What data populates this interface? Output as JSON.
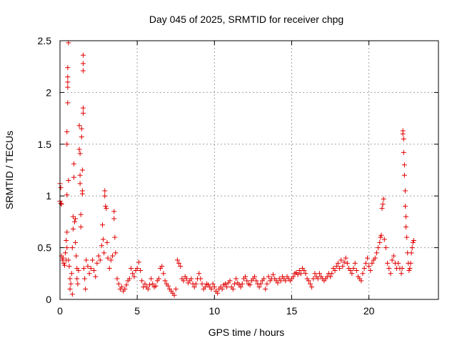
{
  "chart_data": {
    "type": "scatter",
    "title": "Day 045 of 2025, SRMTID for receiver chpg",
    "xlabel": "GPS time / hours",
    "ylabel": "SRMTID / TECUs",
    "xlim": [
      0,
      24.5
    ],
    "ylim": [
      0,
      2.5
    ],
    "xticks": [
      0,
      5,
      10,
      15,
      20
    ],
    "xtick_labels": [
      "0",
      "5",
      "10",
      "15",
      "20"
    ],
    "yticks": [
      0,
      0.5,
      1,
      1.5,
      2,
      2.5
    ],
    "ytick_labels": [
      "0",
      "0.5",
      "1",
      "1.5",
      "2",
      "2.5"
    ],
    "grid": true,
    "marker": "+",
    "color": "#e00000",
    "series": [
      {
        "name": "chpg",
        "points": [
          [
            0.0,
            1.12
          ],
          [
            0.0,
            0.95
          ],
          [
            0.05,
            1.08
          ],
          [
            0.05,
            0.93
          ],
          [
            0.1,
            0.92
          ],
          [
            0.1,
            0.42
          ],
          [
            0.15,
            0.38
          ],
          [
            0.2,
            0.4
          ],
          [
            0.25,
            0.35
          ],
          [
            0.3,
            0.33
          ],
          [
            0.35,
            0.45
          ],
          [
            0.4,
            0.38
          ],
          [
            0.4,
            0.57
          ],
          [
            0.45,
            0.5
          ],
          [
            0.45,
            0.65
          ],
          [
            0.45,
            1.01
          ],
          [
            0.45,
            1.5
          ],
          [
            0.45,
            1.62
          ],
          [
            0.5,
            1.9
          ],
          [
            0.5,
            2.05
          ],
          [
            0.5,
            2.1
          ],
          [
            0.5,
            2.15
          ],
          [
            0.5,
            2.24
          ],
          [
            0.55,
            2.48
          ],
          [
            0.55,
            1.15
          ],
          [
            0.55,
            0.38
          ],
          [
            0.6,
            0.32
          ],
          [
            0.65,
            0.2
          ],
          [
            0.65,
            0.1
          ],
          [
            0.7,
            0.15
          ],
          [
            0.75,
            0.25
          ],
          [
            0.8,
            0.05
          ],
          [
            0.8,
            0.5
          ],
          [
            0.85,
            0.68
          ],
          [
            0.85,
            0.8
          ],
          [
            0.9,
            1.18
          ],
          [
            0.9,
            1.31
          ],
          [
            0.95,
            0.75
          ],
          [
            1.0,
            0.78
          ],
          [
            1.0,
            0.55
          ],
          [
            1.05,
            0.42
          ],
          [
            1.1,
            0.3
          ],
          [
            1.1,
            0.2
          ],
          [
            1.15,
            0.15
          ],
          [
            1.2,
            0.28
          ],
          [
            1.25,
            1.68
          ],
          [
            1.25,
            1.45
          ],
          [
            1.3,
            1.41
          ],
          [
            1.3,
            1.2
          ],
          [
            1.3,
            1.12
          ],
          [
            1.35,
            0.82
          ],
          [
            1.35,
            0.7
          ],
          [
            1.4,
            1.65
          ],
          [
            1.4,
            1.57
          ],
          [
            1.45,
            1.25
          ],
          [
            1.45,
            1.05
          ],
          [
            1.45,
            1.02
          ],
          [
            1.5,
            2.36
          ],
          [
            1.5,
            2.28
          ],
          [
            1.5,
            2.21
          ],
          [
            1.5,
            1.85
          ],
          [
            1.5,
            1.8
          ],
          [
            1.55,
            0.3
          ],
          [
            1.6,
            0.2
          ],
          [
            1.65,
            0.1
          ],
          [
            1.7,
            0.38
          ],
          [
            1.8,
            0.32
          ],
          [
            1.9,
            0.25
          ],
          [
            2.0,
            0.3
          ],
          [
            2.1,
            0.38
          ],
          [
            2.2,
            0.28
          ],
          [
            2.3,
            0.22
          ],
          [
            2.4,
            0.35
          ],
          [
            2.5,
            0.42
          ],
          [
            2.6,
            0.38
          ],
          [
            2.7,
            0.52
          ],
          [
            2.75,
            0.72
          ],
          [
            2.8,
            0.58
          ],
          [
            2.85,
            0.45
          ],
          [
            2.9,
            1.05
          ],
          [
            2.9,
            1.0
          ],
          [
            2.95,
            0.9
          ],
          [
            3.0,
            0.88
          ],
          [
            3.05,
            0.55
          ],
          [
            3.1,
            0.4
          ],
          [
            3.2,
            0.3
          ],
          [
            3.3,
            0.38
          ],
          [
            3.4,
            0.42
          ],
          [
            3.5,
            0.85
          ],
          [
            3.5,
            0.78
          ],
          [
            3.55,
            0.6
          ],
          [
            3.6,
            0.45
          ],
          [
            3.7,
            0.2
          ],
          [
            3.8,
            0.15
          ],
          [
            3.9,
            0.1
          ],
          [
            4.0,
            0.12
          ],
          [
            4.1,
            0.08
          ],
          [
            4.2,
            0.1
          ],
          [
            4.3,
            0.14
          ],
          [
            4.4,
            0.18
          ],
          [
            4.5,
            0.2
          ],
          [
            4.6,
            0.3
          ],
          [
            4.7,
            0.25
          ],
          [
            4.8,
            0.22
          ],
          [
            4.9,
            0.28
          ],
          [
            5.0,
            0.3
          ],
          [
            5.1,
            0.36
          ],
          [
            5.2,
            0.28
          ],
          [
            5.3,
            0.18
          ],
          [
            5.4,
            0.12
          ],
          [
            5.5,
            0.15
          ],
          [
            5.6,
            0.12
          ],
          [
            5.7,
            0.1
          ],
          [
            5.8,
            0.14
          ],
          [
            5.9,
            0.2
          ],
          [
            6.0,
            0.15
          ],
          [
            6.1,
            0.12
          ],
          [
            6.2,
            0.13
          ],
          [
            6.3,
            0.18
          ],
          [
            6.4,
            0.2
          ],
          [
            6.5,
            0.3
          ],
          [
            6.6,
            0.32
          ],
          [
            6.7,
            0.25
          ],
          [
            6.8,
            0.18
          ],
          [
            6.9,
            0.15
          ],
          [
            7.0,
            0.13
          ],
          [
            7.1,
            0.1
          ],
          [
            7.2,
            0.08
          ],
          [
            7.3,
            0.06
          ],
          [
            7.4,
            0.04
          ],
          [
            7.5,
            0.1
          ],
          [
            7.6,
            0.38
          ],
          [
            7.7,
            0.35
          ],
          [
            7.8,
            0.32
          ],
          [
            7.9,
            0.2
          ],
          [
            8.0,
            0.18
          ],
          [
            8.1,
            0.22
          ],
          [
            8.2,
            0.2
          ],
          [
            8.3,
            0.16
          ],
          [
            8.4,
            0.18
          ],
          [
            8.5,
            0.2
          ],
          [
            8.6,
            0.15
          ],
          [
            8.7,
            0.12
          ],
          [
            8.8,
            0.15
          ],
          [
            8.9,
            0.2
          ],
          [
            9.0,
            0.25
          ],
          [
            9.1,
            0.2
          ],
          [
            9.2,
            0.15
          ],
          [
            9.3,
            0.1
          ],
          [
            9.4,
            0.12
          ],
          [
            9.5,
            0.15
          ],
          [
            9.6,
            0.14
          ],
          [
            9.7,
            0.12
          ],
          [
            9.8,
            0.1
          ],
          [
            9.9,
            0.15
          ],
          [
            10.0,
            0.12
          ],
          [
            10.1,
            0.08
          ],
          [
            10.2,
            0.06
          ],
          [
            10.3,
            0.1
          ],
          [
            10.4,
            0.12
          ],
          [
            10.5,
            0.1
          ],
          [
            10.6,
            0.14
          ],
          [
            10.7,
            0.15
          ],
          [
            10.8,
            0.12
          ],
          [
            10.9,
            0.16
          ],
          [
            11.0,
            0.18
          ],
          [
            11.1,
            0.12
          ],
          [
            11.2,
            0.1
          ],
          [
            11.3,
            0.15
          ],
          [
            11.4,
            0.2
          ],
          [
            11.5,
            0.16
          ],
          [
            11.6,
            0.14
          ],
          [
            11.7,
            0.12
          ],
          [
            11.8,
            0.15
          ],
          [
            11.9,
            0.2
          ],
          [
            12.0,
            0.22
          ],
          [
            12.1,
            0.18
          ],
          [
            12.2,
            0.15
          ],
          [
            12.3,
            0.14
          ],
          [
            12.4,
            0.18
          ],
          [
            12.5,
            0.2
          ],
          [
            12.6,
            0.22
          ],
          [
            12.7,
            0.18
          ],
          [
            12.8,
            0.15
          ],
          [
            12.9,
            0.12
          ],
          [
            13.0,
            0.15
          ],
          [
            13.1,
            0.18
          ],
          [
            13.2,
            0.2
          ],
          [
            13.3,
            0.1
          ],
          [
            13.4,
            0.15
          ],
          [
            13.5,
            0.22
          ],
          [
            13.6,
            0.18
          ],
          [
            13.7,
            0.2
          ],
          [
            13.8,
            0.24
          ],
          [
            13.9,
            0.2
          ],
          [
            14.0,
            0.18
          ],
          [
            14.1,
            0.16
          ],
          [
            14.2,
            0.2
          ],
          [
            14.3,
            0.18
          ],
          [
            14.4,
            0.22
          ],
          [
            14.5,
            0.2
          ],
          [
            14.6,
            0.18
          ],
          [
            14.7,
            0.22
          ],
          [
            14.8,
            0.2
          ],
          [
            14.9,
            0.18
          ],
          [
            15.0,
            0.2
          ],
          [
            15.1,
            0.22
          ],
          [
            15.2,
            0.25
          ],
          [
            15.3,
            0.26
          ],
          [
            15.4,
            0.24
          ],
          [
            15.5,
            0.28
          ],
          [
            15.6,
            0.25
          ],
          [
            15.7,
            0.3
          ],
          [
            15.8,
            0.28
          ],
          [
            15.9,
            0.25
          ],
          [
            16.0,
            0.2
          ],
          [
            16.1,
            0.18
          ],
          [
            16.2,
            0.15
          ],
          [
            16.3,
            0.12
          ],
          [
            16.4,
            0.2
          ],
          [
            16.5,
            0.25
          ],
          [
            16.6,
            0.22
          ],
          [
            16.7,
            0.2
          ],
          [
            16.8,
            0.25
          ],
          [
            16.9,
            0.22
          ],
          [
            17.0,
            0.2
          ],
          [
            17.1,
            0.18
          ],
          [
            17.2,
            0.2
          ],
          [
            17.3,
            0.22
          ],
          [
            17.4,
            0.25
          ],
          [
            17.5,
            0.22
          ],
          [
            17.6,
            0.25
          ],
          [
            17.7,
            0.3
          ],
          [
            17.8,
            0.28
          ],
          [
            17.9,
            0.32
          ],
          [
            18.0,
            0.35
          ],
          [
            18.1,
            0.3
          ],
          [
            18.2,
            0.38
          ],
          [
            18.3,
            0.32
          ],
          [
            18.4,
            0.36
          ],
          [
            18.5,
            0.4
          ],
          [
            18.6,
            0.35
          ],
          [
            18.7,
            0.3
          ],
          [
            18.8,
            0.28
          ],
          [
            18.9,
            0.25
          ],
          [
            19.0,
            0.3
          ],
          [
            19.1,
            0.35
          ],
          [
            19.2,
            0.28
          ],
          [
            19.3,
            0.22
          ],
          [
            19.4,
            0.2
          ],
          [
            19.5,
            0.18
          ],
          [
            19.6,
            0.25
          ],
          [
            19.7,
            0.3
          ],
          [
            19.8,
            0.35
          ],
          [
            19.9,
            0.4
          ],
          [
            20.0,
            0.32
          ],
          [
            20.1,
            0.28
          ],
          [
            20.2,
            0.35
          ],
          [
            20.3,
            0.38
          ],
          [
            20.4,
            0.4
          ],
          [
            20.5,
            0.45
          ],
          [
            20.6,
            0.5
          ],
          [
            20.7,
            0.55
          ],
          [
            20.75,
            0.6
          ],
          [
            20.8,
            0.62
          ],
          [
            20.85,
            0.88
          ],
          [
            20.9,
            0.92
          ],
          [
            20.95,
            0.97
          ],
          [
            21.0,
            0.58
          ],
          [
            21.1,
            0.5
          ],
          [
            21.2,
            0.35
          ],
          [
            21.3,
            0.3
          ],
          [
            21.4,
            0.25
          ],
          [
            21.5,
            0.38
          ],
          [
            21.6,
            0.42
          ],
          [
            21.7,
            0.35
          ],
          [
            21.8,
            0.3
          ],
          [
            21.9,
            0.35
          ],
          [
            22.0,
            0.3
          ],
          [
            22.1,
            0.25
          ],
          [
            22.15,
            0.3
          ],
          [
            22.2,
            1.63
          ],
          [
            22.2,
            1.6
          ],
          [
            22.25,
            1.55
          ],
          [
            22.25,
            1.42
          ],
          [
            22.3,
            1.3
          ],
          [
            22.3,
            1.2
          ],
          [
            22.35,
            1.05
          ],
          [
            22.35,
            0.9
          ],
          [
            22.4,
            0.8
          ],
          [
            22.4,
            0.7
          ],
          [
            22.45,
            0.6
          ],
          [
            22.5,
            0.45
          ],
          [
            22.55,
            0.35
          ],
          [
            22.6,
            0.28
          ],
          [
            22.65,
            0.3
          ],
          [
            22.7,
            0.35
          ],
          [
            22.75,
            0.45
          ],
          [
            22.8,
            0.5
          ],
          [
            22.85,
            0.55
          ],
          [
            22.9,
            0.57
          ]
        ]
      }
    ]
  }
}
